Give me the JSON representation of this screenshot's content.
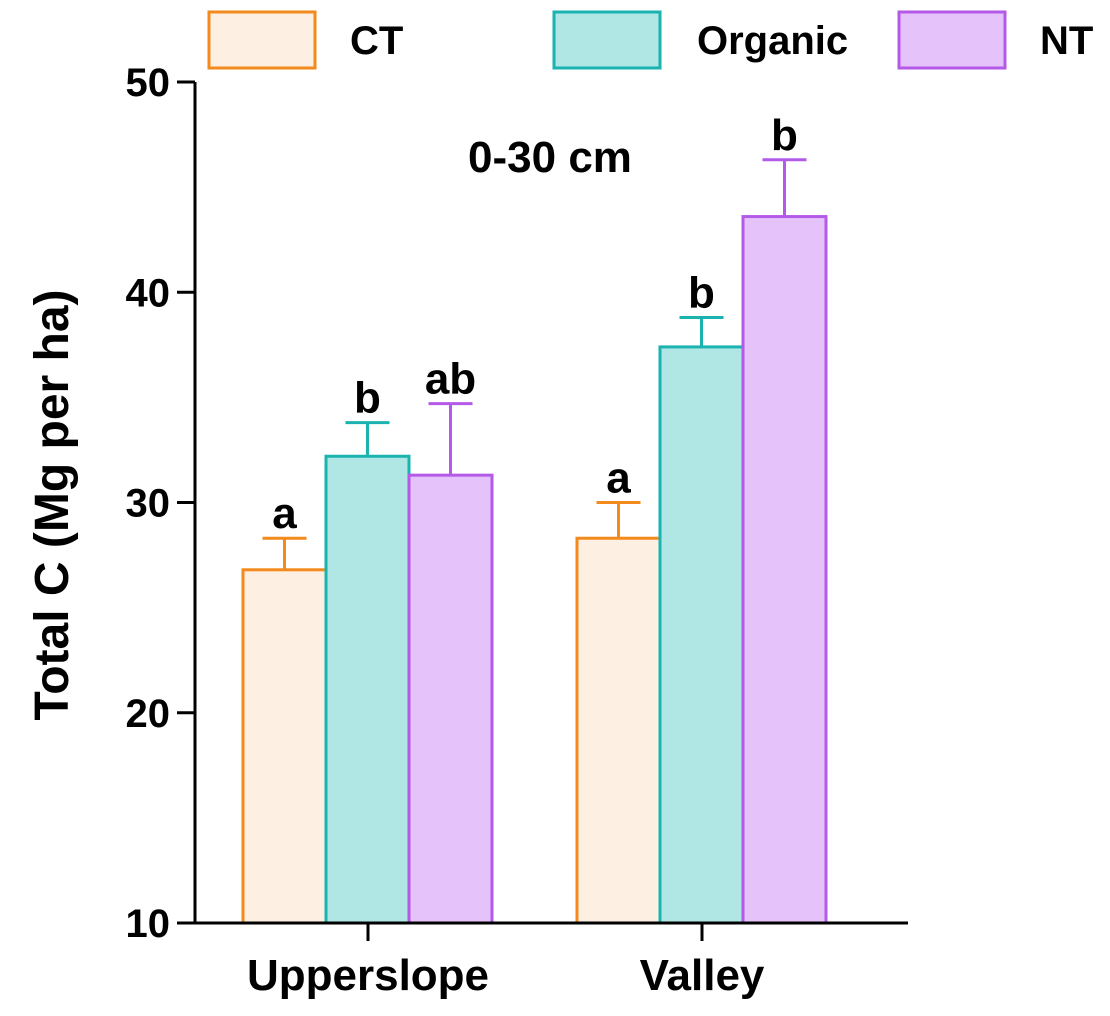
{
  "chart_data": {
    "type": "bar",
    "title": "",
    "subtitle": "0-30 cm",
    "xlabel": "",
    "ylabel": "Total C (Mg per ha)",
    "ylim": [
      10,
      50
    ],
    "yticks": [
      10,
      20,
      30,
      40,
      50
    ],
    "grid": false,
    "legend_position": "top",
    "categories": [
      "Upperslope",
      "Valley"
    ],
    "series": [
      {
        "name": "CT",
        "values": [
          26.8,
          28.3
        ],
        "errors": [
          1.5,
          1.7
        ],
        "letters": [
          "a",
          "a"
        ],
        "fill": "#fdf0e2",
        "stroke": "#f28a1e"
      },
      {
        "name": "Organic",
        "values": [
          32.2,
          37.4
        ],
        "errors": [
          1.6,
          1.4
        ],
        "letters": [
          "b",
          "b"
        ],
        "fill": "#b0e6e4",
        "stroke": "#1ab3b0"
      },
      {
        "name": "NT",
        "values": [
          31.3,
          43.6
        ],
        "errors": [
          3.4,
          2.7
        ],
        "letters": [
          "ab",
          "b"
        ],
        "fill": "#e6c2fb",
        "stroke": "#b45ae8"
      }
    ]
  }
}
